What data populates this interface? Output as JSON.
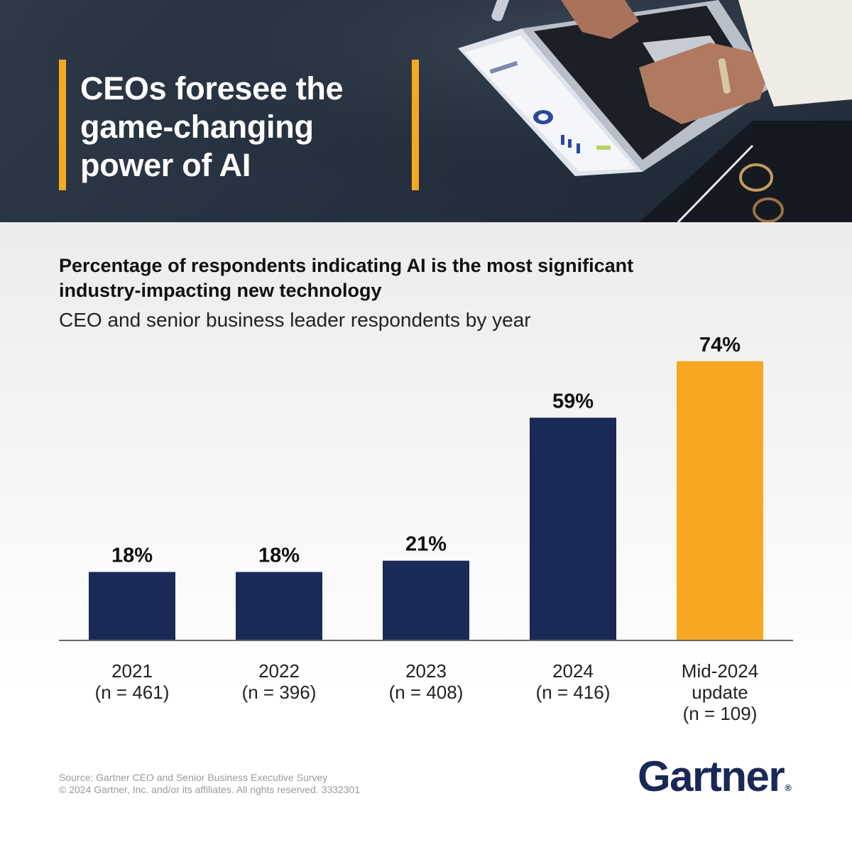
{
  "hero": {
    "title": "CEOs foresee the game-changing power of AI",
    "accent_color": "#f6a823"
  },
  "chart_data": {
    "type": "bar",
    "title": "Percentage of respondents indicating AI is the most significant industry-impacting new technology",
    "subtitle": "CEO and senior business leader respondents by year",
    "categories": [
      [
        "2021",
        "(n = 461)"
      ],
      [
        "2022",
        "(n = 396)"
      ],
      [
        "2023",
        "(n = 408)"
      ],
      [
        "2024",
        "(n = 416)"
      ],
      [
        "Mid-2024",
        "update",
        "(n = 109)"
      ]
    ],
    "values": [
      18,
      18,
      21,
      59,
      74
    ],
    "value_labels": [
      "18%",
      "18%",
      "21%",
      "59%",
      "74%"
    ],
    "bar_colors": [
      "#192a56",
      "#192a56",
      "#192a56",
      "#192a56",
      "#f6a823"
    ],
    "ylim": [
      0,
      100
    ],
    "grid": false,
    "legend": "none"
  },
  "footer": {
    "source": "Source: Gartner CEO and Senior Business Executive Survey",
    "copyright": "© 2024 Gartner, Inc. and/or its affiliates. All rights reserved. 3332301",
    "logo": "Gartner",
    "logo_mark": "®",
    "logo_color": "#1a2857"
  }
}
